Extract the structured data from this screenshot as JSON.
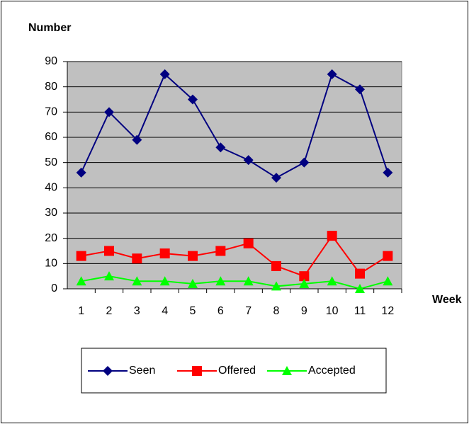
{
  "chart_data": {
    "type": "line",
    "y_label": "Number",
    "x_label": "Week",
    "categories": [
      "1",
      "2",
      "3",
      "4",
      "5",
      "6",
      "7",
      "8",
      "9",
      "10",
      "11",
      "12"
    ],
    "series": [
      {
        "name": "Seen",
        "color": "#000080",
        "marker": "diamond",
        "values": [
          46,
          70,
          59,
          85,
          75,
          56,
          51,
          44,
          50,
          85,
          79,
          46
        ]
      },
      {
        "name": "Offered",
        "color": "#ff0000",
        "marker": "square",
        "values": [
          13,
          15,
          12,
          14,
          13,
          15,
          18,
          9,
          5,
          21,
          6,
          13
        ]
      },
      {
        "name": "Accepted",
        "color": "#00ff00",
        "marker": "triangle",
        "values": [
          3,
          5,
          3,
          3,
          2,
          3,
          3,
          1,
          2,
          3,
          0,
          3
        ]
      }
    ],
    "ylim": [
      0,
      90
    ],
    "yticks": [
      0,
      10,
      20,
      30,
      40,
      50,
      60,
      70,
      80,
      90
    ],
    "grid": true
  }
}
